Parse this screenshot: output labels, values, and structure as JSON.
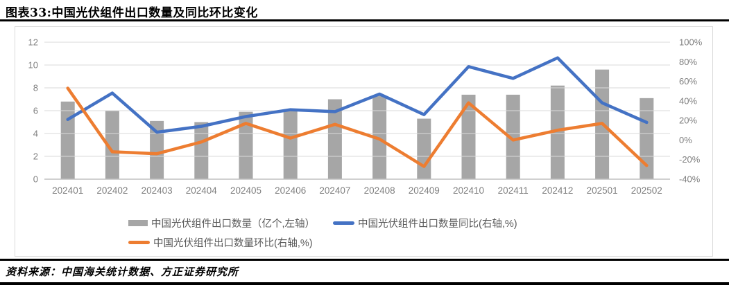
{
  "page": {
    "title": "图表33:中国光伏组件出口数量及同比环比变化",
    "source": "资料来源：中国海关统计数据、方正证券研究所"
  },
  "chart_data": {
    "type": "bar+line combo",
    "title": "图表33:中国光伏组件出口数量及同比环比变化",
    "categories": [
      "202401",
      "202402",
      "202403",
      "202404",
      "202405",
      "202406",
      "202407",
      "202408",
      "202409",
      "202410",
      "202411",
      "202412",
      "202501",
      "202502"
    ],
    "series": [
      {
        "name": "中国光伏组件出口数量（亿个,左轴）",
        "type": "bar",
        "axis": "left",
        "color": "#A6A6A6",
        "values": [
          6.8,
          6.0,
          5.1,
          5.0,
          5.9,
          6.0,
          7.0,
          7.3,
          5.3,
          7.4,
          7.4,
          8.2,
          9.6,
          7.1
        ]
      },
      {
        "name": "中国光伏组件出口数量同比(右轴,%)",
        "type": "line",
        "axis": "right",
        "color": "#4472C4",
        "values": [
          21,
          48,
          8,
          14,
          24,
          31,
          29,
          47,
          26,
          75,
          63,
          84,
          38,
          18
        ]
      },
      {
        "name": "中国光伏组件出口数量环比(右轴,%)",
        "type": "line",
        "axis": "right",
        "color": "#ED7D31",
        "values": [
          53,
          -12,
          -14,
          -2,
          17,
          2,
          16,
          1,
          -27,
          38,
          0,
          10,
          17,
          -26
        ]
      }
    ],
    "left_axis": {
      "ticks": [
        12,
        10,
        8,
        6,
        4,
        2,
        0
      ],
      "min": 0,
      "max": 12
    },
    "right_axis": {
      "ticks": [
        "100%",
        "80%",
        "60%",
        "40%",
        "20%",
        "0%",
        "-20%",
        "-40%"
      ],
      "min": -40,
      "max": 100
    },
    "grid": true,
    "gridline_color": "#D9D9D9",
    "axis_text_color": "#7F7F7F",
    "legend_position": "bottom"
  }
}
